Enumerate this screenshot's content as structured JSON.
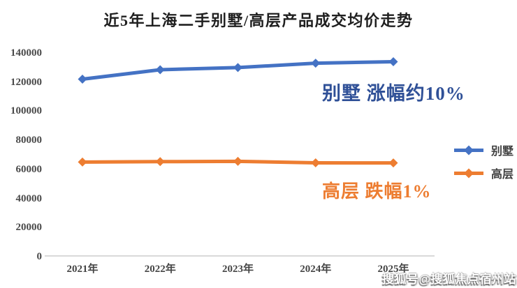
{
  "title": "近5年上海二手别墅/高层产品成交均价走势",
  "watermark": "搜狐号@搜狐焦点宿州站",
  "chart_data": {
    "type": "line",
    "title": "近5年上海二手别墅/高层产品成交均价走势",
    "categories": [
      "2021年",
      "2022年",
      "2023年",
      "2024年",
      "2025年"
    ],
    "series": [
      {
        "name": "别墅",
        "color": "#4472C4",
        "marker": "diamond",
        "values": [
          122000,
          128500,
          130000,
          133000,
          134000
        ]
      },
      {
        "name": "高层",
        "color": "#ED7D31",
        "marker": "diamond",
        "values": [
          65000,
          65300,
          65500,
          64500,
          64400
        ]
      }
    ],
    "ylim": [
      0,
      140000
    ],
    "yticks": [
      0,
      20000,
      40000,
      60000,
      80000,
      100000,
      120000,
      140000
    ],
    "grid": false,
    "legend_position": "right",
    "annotations": [
      {
        "text": "别墅 涨幅约10%",
        "color": "#2F5097",
        "series": "别墅"
      },
      {
        "text": "高层 跌幅1%",
        "color": "#ED7D31",
        "series": "高层"
      }
    ]
  }
}
